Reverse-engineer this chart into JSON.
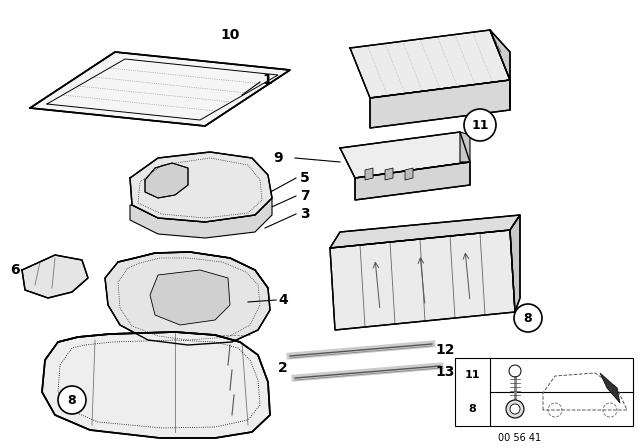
{
  "background_color": "#ffffff",
  "line_color": "#000000",
  "fig_width": 6.4,
  "fig_height": 4.48,
  "dpi": 100,
  "note_text": "00 56 41",
  "part_number_fontsize": 10
}
